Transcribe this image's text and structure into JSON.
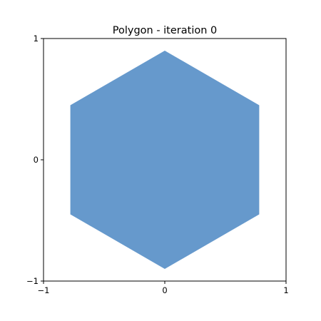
{
  "chart_data": {
    "type": "area",
    "title": "Polygon - iteration 0",
    "xlabel": "",
    "ylabel": "",
    "xlim": [
      -1,
      1
    ],
    "ylim": [
      -1,
      1
    ],
    "grid": false,
    "xticks": [
      -1,
      0,
      1
    ],
    "yticks": [
      -1,
      0,
      1
    ],
    "xtick_labels": [
      "−1",
      "0",
      "1"
    ],
    "ytick_labels": [
      "−1",
      "0",
      "1"
    ],
    "series": [
      {
        "color": "#6699cc",
        "polygon": [
          [
            0,
            0.9
          ],
          [
            0.779,
            0.45
          ],
          [
            0.779,
            -0.45
          ],
          [
            0,
            -0.9
          ],
          [
            -0.779,
            -0.45
          ],
          [
            -0.779,
            0.45
          ]
        ]
      }
    ]
  }
}
